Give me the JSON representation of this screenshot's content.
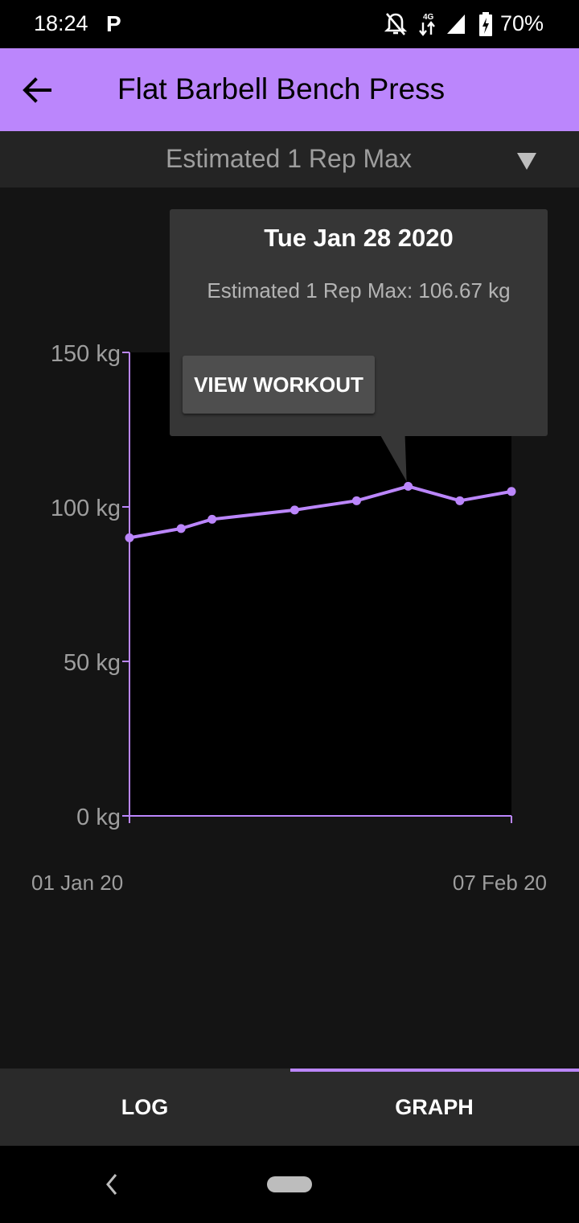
{
  "status_bar": {
    "time": "18:24",
    "parking_app": "P",
    "network": "4G",
    "battery": "70%",
    "icons": [
      "parking-icon",
      "bell-off-icon",
      "data-arrows-icon",
      "signal-icon",
      "battery-charging-icon"
    ]
  },
  "app_bar": {
    "title": "Flat Barbell Bench Press",
    "back_icon": "arrow-back-icon",
    "background": "#bb86fc"
  },
  "metric_dropdown": {
    "selected": "Estimated 1 Rep Max",
    "arrow_icon": "dropdown-triangle-icon"
  },
  "tooltip": {
    "date": "Tue Jan 28 2020",
    "value": "Estimated 1 Rep Max: 106.67 kg",
    "button_label": "VIEW WORKOUT"
  },
  "chart_data": {
    "type": "line",
    "x": [
      "2020-01-01",
      "2020-01-06",
      "2020-01-09",
      "2020-01-17",
      "2020-01-23",
      "2020-01-28",
      "2020-02-02",
      "2020-02-07"
    ],
    "series": [
      {
        "values": [
          90,
          93,
          96,
          99,
          102,
          106.67,
          102,
          105
        ]
      }
    ],
    "ylim": [
      0,
      150
    ],
    "y_ticks": [
      "150 kg",
      "100 kg",
      "50 kg",
      "0 kg"
    ],
    "y_tick_values": [
      150,
      100,
      50,
      0
    ],
    "x_tick_labels": [
      "01 Jan 20",
      "07 Feb 20"
    ],
    "xlim": [
      "2020-01-01",
      "2020-02-07"
    ],
    "grid": false,
    "line_color": "#bb86fc"
  },
  "tabs": {
    "log": "LOG",
    "graph": "GRAPH",
    "selected": "GRAPH"
  },
  "nav_bar": {
    "back_icon": "nav-back-icon",
    "home_icon": "nav-home-pill-icon"
  }
}
